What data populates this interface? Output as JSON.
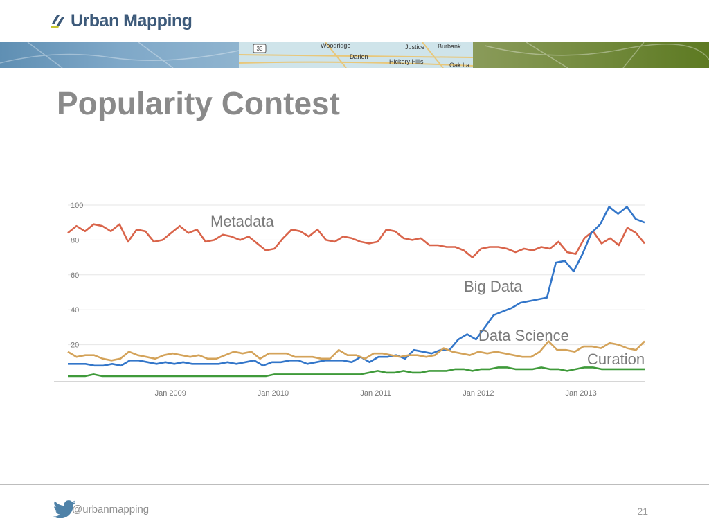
{
  "brand": {
    "name": "Urban Mapping",
    "accent": "#3d5a7a",
    "mark_color": "#3d5a7a",
    "mark_highlight": "#c6c632"
  },
  "banner": {
    "place_labels": [
      "33",
      "Woodridge",
      "Darien",
      "Justice",
      "Burbank",
      "Hickory Hills",
      "Oak La"
    ]
  },
  "slide": {
    "title": "Popularity Contest",
    "page_number": "21"
  },
  "footer": {
    "handle": "@urbanmapping",
    "icon": "twitter-bird-icon"
  },
  "chart_data": {
    "type": "line",
    "title": "",
    "xlabel": "",
    "ylabel": "",
    "ylim": [
      0,
      100
    ],
    "yticks": [
      20,
      40,
      60,
      80,
      100
    ],
    "xlim": [
      2008.0,
      2013.62
    ],
    "xticks": [
      {
        "value": 2009.0,
        "label": "Jan 2009"
      },
      {
        "value": 2010.0,
        "label": "Jan 2010"
      },
      {
        "value": 2011.0,
        "label": "Jan 2011"
      },
      {
        "value": 2012.0,
        "label": "Jan 2012"
      },
      {
        "value": 2013.0,
        "label": "Jan 2013"
      }
    ],
    "grid": true,
    "legend": "inline labels",
    "series": [
      {
        "name": "Metadata",
        "color": "#d9644a",
        "values": [
          84,
          88,
          85,
          89,
          88,
          85,
          89,
          79,
          86,
          85,
          79,
          80,
          84,
          88,
          84,
          86,
          79,
          80,
          83,
          82,
          80,
          82,
          78,
          74,
          75,
          81,
          86,
          85,
          82,
          86,
          80,
          79,
          82,
          81,
          79,
          78,
          79,
          86,
          85,
          81,
          80,
          81,
          77,
          77,
          76,
          76,
          74,
          70,
          75,
          76,
          76,
          75,
          73,
          75,
          74,
          76,
          75,
          79,
          73,
          72,
          81,
          85,
          78,
          81,
          77,
          87,
          84,
          78
        ]
      },
      {
        "name": "Big Data",
        "color": "#3376c9",
        "values": [
          9,
          9,
          9,
          8,
          8,
          9,
          8,
          11,
          11,
          10,
          9,
          10,
          9,
          10,
          9,
          9,
          9,
          9,
          10,
          9,
          10,
          11,
          8,
          10,
          10,
          11,
          11,
          9,
          10,
          11,
          11,
          11,
          10,
          13,
          10,
          13,
          13,
          14,
          12,
          17,
          16,
          15,
          17,
          17,
          23,
          26,
          23,
          30,
          37,
          39,
          41,
          44,
          45,
          46,
          47,
          67,
          68,
          62,
          72,
          84,
          89,
          99,
          95,
          99,
          92,
          90
        ]
      },
      {
        "name": "Data Science",
        "color": "#d4a35a",
        "values": [
          16,
          13,
          14,
          14,
          12,
          11,
          12,
          16,
          14,
          13,
          12,
          14,
          15,
          14,
          13,
          14,
          12,
          12,
          14,
          16,
          15,
          16,
          12,
          15,
          15,
          15,
          13,
          13,
          13,
          12,
          12,
          17,
          14,
          14,
          12,
          15,
          15,
          14,
          13,
          14,
          14,
          13,
          14,
          18,
          16,
          15,
          14,
          16,
          15,
          16,
          15,
          14,
          13,
          13,
          16,
          22,
          17,
          17,
          16,
          19,
          19,
          18,
          21,
          20,
          18,
          17,
          22
        ]
      },
      {
        "name": "Curation",
        "color": "#3f9a3a",
        "values": [
          2,
          2,
          2,
          3,
          2,
          2,
          2,
          2,
          2,
          2,
          2,
          2,
          2,
          2,
          2,
          2,
          2,
          2,
          2,
          2,
          2,
          2,
          2,
          2,
          3,
          3,
          3,
          3,
          3,
          3,
          3,
          3,
          3,
          3,
          3,
          4,
          5,
          4,
          4,
          5,
          4,
          4,
          5,
          5,
          5,
          6,
          6,
          5,
          6,
          6,
          7,
          7,
          6,
          6,
          6,
          7,
          6,
          6,
          5,
          6,
          7,
          7,
          6,
          6,
          6,
          6,
          6,
          6
        ]
      }
    ]
  }
}
